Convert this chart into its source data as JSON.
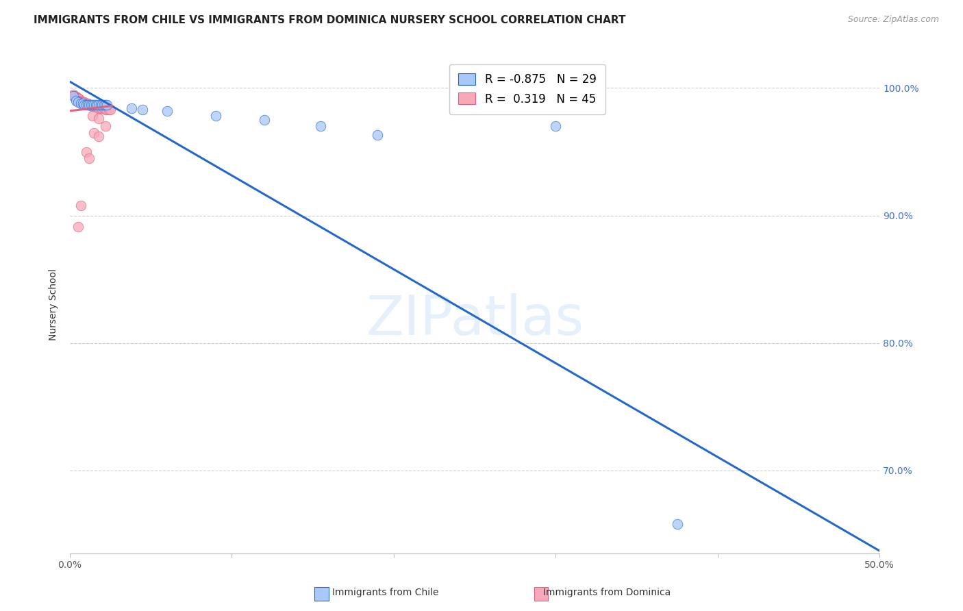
{
  "title": "IMMIGRANTS FROM CHILE VS IMMIGRANTS FROM DOMINICA NURSERY SCHOOL CORRELATION CHART",
  "source": "Source: ZipAtlas.com",
  "ylabel": "Nursery School",
  "ytick_labels": [
    "100.0%",
    "90.0%",
    "80.0%",
    "70.0%"
  ],
  "ytick_values": [
    1.0,
    0.9,
    0.8,
    0.7
  ],
  "xlim": [
    0.0,
    0.5
  ],
  "ylim": [
    0.635,
    1.025
  ],
  "legend_chile_R": "-0.875",
  "legend_chile_N": "29",
  "legend_dominica_R": "0.319",
  "legend_dominica_N": "45",
  "chile_color": "#a8c8f8",
  "dominica_color": "#f8a8b8",
  "trendline_chile_color": "#2468cc",
  "trendline_dominica_color": "#e06080",
  "watermark": "ZIPatlas",
  "chile_scatter": [
    [
      0.002,
      0.994
    ],
    [
      0.004,
      0.99
    ],
    [
      0.005,
      0.989
    ],
    [
      0.007,
      0.988
    ],
    [
      0.008,
      0.988
    ],
    [
      0.009,
      0.987
    ],
    [
      0.01,
      0.987
    ],
    [
      0.011,
      0.987
    ],
    [
      0.012,
      0.987
    ],
    [
      0.013,
      0.987
    ],
    [
      0.014,
      0.987
    ],
    [
      0.015,
      0.987
    ],
    [
      0.016,
      0.987
    ],
    [
      0.017,
      0.987
    ],
    [
      0.018,
      0.987
    ],
    [
      0.019,
      0.987
    ],
    [
      0.02,
      0.987
    ],
    [
      0.021,
      0.987
    ],
    [
      0.022,
      0.987
    ],
    [
      0.023,
      0.987
    ],
    [
      0.038,
      0.984
    ],
    [
      0.045,
      0.983
    ],
    [
      0.06,
      0.982
    ],
    [
      0.09,
      0.978
    ],
    [
      0.12,
      0.975
    ],
    [
      0.155,
      0.97
    ],
    [
      0.19,
      0.963
    ],
    [
      0.3,
      0.97
    ],
    [
      0.375,
      0.658
    ]
  ],
  "dominica_scatter": [
    [
      0.002,
      0.995
    ],
    [
      0.003,
      0.994
    ],
    [
      0.003,
      0.993
    ],
    [
      0.004,
      0.993
    ],
    [
      0.004,
      0.992
    ],
    [
      0.005,
      0.992
    ],
    [
      0.005,
      0.991
    ],
    [
      0.006,
      0.991
    ],
    [
      0.006,
      0.99
    ],
    [
      0.007,
      0.99
    ],
    [
      0.007,
      0.989
    ],
    [
      0.008,
      0.989
    ],
    [
      0.008,
      0.989
    ],
    [
      0.009,
      0.989
    ],
    [
      0.009,
      0.988
    ],
    [
      0.01,
      0.988
    ],
    [
      0.01,
      0.988
    ],
    [
      0.011,
      0.988
    ],
    [
      0.011,
      0.987
    ],
    [
      0.012,
      0.987
    ],
    [
      0.012,
      0.987
    ],
    [
      0.013,
      0.987
    ],
    [
      0.014,
      0.986
    ],
    [
      0.014,
      0.986
    ],
    [
      0.015,
      0.986
    ],
    [
      0.015,
      0.985
    ],
    [
      0.016,
      0.985
    ],
    [
      0.017,
      0.985
    ],
    [
      0.018,
      0.984
    ],
    [
      0.019,
      0.984
    ],
    [
      0.02,
      0.984
    ],
    [
      0.021,
      0.984
    ],
    [
      0.022,
      0.983
    ],
    [
      0.023,
      0.983
    ],
    [
      0.024,
      0.983
    ],
    [
      0.025,
      0.983
    ],
    [
      0.014,
      0.978
    ],
    [
      0.018,
      0.976
    ],
    [
      0.022,
      0.97
    ],
    [
      0.015,
      0.965
    ],
    [
      0.018,
      0.962
    ],
    [
      0.01,
      0.95
    ],
    [
      0.012,
      0.945
    ],
    [
      0.007,
      0.908
    ],
    [
      0.005,
      0.891
    ]
  ],
  "chile_trendline_x": [
    0.0,
    0.5
  ],
  "chile_trendline_y": [
    1.005,
    0.637
  ],
  "dominica_trendline_x": [
    0.0,
    0.026
  ],
  "dominica_trendline_y": [
    0.982,
    0.986
  ]
}
